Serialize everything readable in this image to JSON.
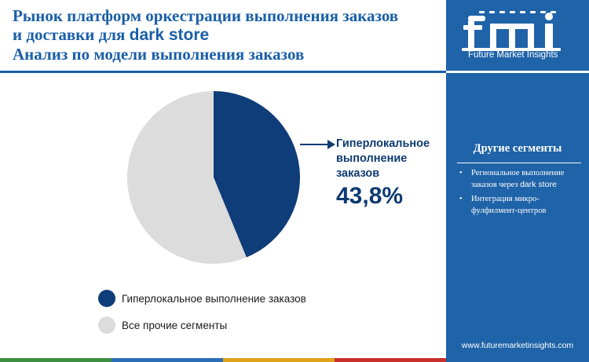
{
  "title": {
    "line1": "Рынок платформ оркестрации выполнения заказов",
    "line2_prefix": "и доставки для ",
    "line2_bold": "dark store",
    "line3": "Анализ по модели выполнения заказов"
  },
  "chart_data": {
    "type": "pie",
    "categories": [
      "Гиперлокальное выполнение заказов",
      "Все прочие сегменты"
    ],
    "values": [
      43.8,
      56.2
    ],
    "colors": [
      "#0e3d79",
      "#dcdcdc"
    ],
    "callout": {
      "label": "Гиперлокальное выполнение заказов",
      "value": "43,8%"
    },
    "legend": [
      {
        "label": "Гиперлокальное выполнение заказов",
        "color": "#0e3d79"
      },
      {
        "label": "Все прочие сегменты",
        "color": "#dcdcdc"
      }
    ]
  },
  "sidebar": {
    "brand": "Future Market Insights",
    "heading": "Другие сегменты",
    "items": [
      {
        "text": "Региональное выполнение заказов через",
        "text_sans": "dark store"
      },
      {
        "text": "Интеграция микро-фулфилмент-центров",
        "text_sans": ""
      }
    ],
    "website": "www.futuremarketinsights.com"
  },
  "bottom_bar_colors": [
    "#3e8e41",
    "#2a6fb6",
    "#e0a21a",
    "#c9302c"
  ],
  "theme": {
    "accent": "#1a5fa8",
    "sidebar_bg": "#1f63a8",
    "dark_navy": "#0e3a70"
  }
}
